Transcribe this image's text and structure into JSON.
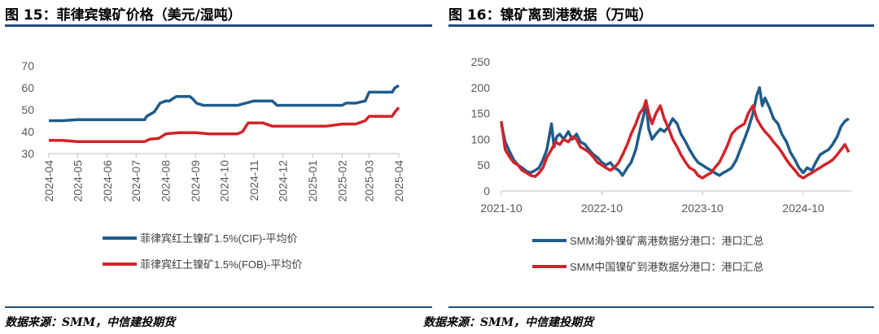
{
  "left_panel": {
    "title": "图 15：菲律宾镍矿价格（美元/湿吨）",
    "source": "数据来源：SMM，中信建投期货"
  },
  "right_panel": {
    "title": "图 16：镍矿离到港数据（万吨）",
    "source": "数据来源：SMM，中信建投期货"
  },
  "chart_data": [
    {
      "type": "line",
      "title": "图 15：菲律宾镍矿价格（美元/湿吨）",
      "xlabel": "",
      "ylabel": "",
      "ylim": [
        30,
        70
      ],
      "yticks": [
        30,
        40,
        50,
        60,
        70
      ],
      "x_ticks": [
        "2024-04",
        "2024-05",
        "2024-06",
        "2024-07",
        "2024-08",
        "2024-09",
        "2024-10",
        "2024-11",
        "2024-12",
        "2025-01",
        "2025-02",
        "2025-03",
        "2025-04"
      ],
      "grid": false,
      "legend_position": "bottom",
      "series": [
        {
          "name": "菲律宾红土镍矿1.5%(CIF)-平均价",
          "color": "#1f5c8b",
          "points": [
            [
              "2024-04-01",
              45
            ],
            [
              "2024-04-15",
              45
            ],
            [
              "2024-05-01",
              45.5
            ],
            [
              "2024-05-15",
              45.5
            ],
            [
              "2024-06-01",
              45.5
            ],
            [
              "2024-06-15",
              45.5
            ],
            [
              "2024-07-01",
              45.5
            ],
            [
              "2024-07-10",
              45.5
            ],
            [
              "2024-07-12",
              47
            ],
            [
              "2024-07-20",
              49
            ],
            [
              "2024-07-26",
              53
            ],
            [
              "2024-08-01",
              54
            ],
            [
              "2024-08-05",
              54
            ],
            [
              "2024-08-08",
              55
            ],
            [
              "2024-08-12",
              56
            ],
            [
              "2024-08-26",
              56
            ],
            [
              "2024-08-29",
              55
            ],
            [
              "2024-09-02",
              53
            ],
            [
              "2024-09-09",
              52
            ],
            [
              "2024-10-01",
              52
            ],
            [
              "2024-10-15",
              52
            ],
            [
              "2024-11-01",
              54
            ],
            [
              "2024-11-20",
              54
            ],
            [
              "2024-11-25",
              52
            ],
            [
              "2024-12-01",
              52
            ],
            [
              "2024-12-15",
              52
            ],
            [
              "2025-01-01",
              52
            ],
            [
              "2025-01-20",
              52
            ],
            [
              "2025-02-01",
              52
            ],
            [
              "2025-02-05",
              53
            ],
            [
              "2025-02-15",
              53
            ],
            [
              "2025-02-25",
              54
            ],
            [
              "2025-03-01",
              58
            ],
            [
              "2025-03-15",
              58
            ],
            [
              "2025-03-20",
              58
            ],
            [
              "2025-03-25",
              58
            ],
            [
              "2025-03-28",
              60
            ],
            [
              "2025-04-01",
              61
            ]
          ]
        },
        {
          "name": "菲律宾红土镍矿1.5%(FOB)-平均价",
          "color": "#d2232a",
          "points": [
            [
              "2024-04-01",
              36
            ],
            [
              "2024-04-15",
              36
            ],
            [
              "2024-05-01",
              35.5
            ],
            [
              "2024-05-15",
              35.5
            ],
            [
              "2024-06-01",
              35.5
            ],
            [
              "2024-06-15",
              35.5
            ],
            [
              "2024-07-01",
              35.5
            ],
            [
              "2024-07-10",
              35.5
            ],
            [
              "2024-07-15",
              36.5
            ],
            [
              "2024-07-25",
              37
            ],
            [
              "2024-08-01",
              39
            ],
            [
              "2024-08-15",
              39.5
            ],
            [
              "2024-09-01",
              39.5
            ],
            [
              "2024-09-15",
              39
            ],
            [
              "2024-10-01",
              39
            ],
            [
              "2024-10-15",
              39
            ],
            [
              "2024-10-20",
              40
            ],
            [
              "2024-10-26",
              44
            ],
            [
              "2024-11-10",
              44
            ],
            [
              "2024-11-20",
              42.5
            ],
            [
              "2024-12-01",
              42.5
            ],
            [
              "2025-01-01",
              42.5
            ],
            [
              "2025-01-15",
              42.5
            ],
            [
              "2025-02-01",
              43.5
            ],
            [
              "2025-02-15",
              43.5
            ],
            [
              "2025-02-25",
              45
            ],
            [
              "2025-03-01",
              47
            ],
            [
              "2025-03-15",
              47
            ],
            [
              "2025-03-25",
              47
            ],
            [
              "2025-03-28",
              49
            ],
            [
              "2025-04-01",
              51
            ]
          ]
        }
      ]
    },
    {
      "type": "line",
      "title": "图 16：镍矿离到港数据（万吨）",
      "xlabel": "",
      "ylabel": "",
      "ylim": [
        0,
        250
      ],
      "yticks": [
        0,
        50,
        100,
        150,
        200,
        250
      ],
      "x_ticks": [
        "2021-10",
        "2022-10",
        "2023-10",
        "2024-10"
      ],
      "grid": false,
      "legend_position": "bottom",
      "series": [
        {
          "name": "SMM海外镍矿离港数据分港口：港口汇总",
          "color": "#1f5c8b",
          "points": [
            [
              "2021-10-01",
              130
            ],
            [
              "2021-10-15",
              95
            ],
            [
              "2021-11-01",
              75
            ],
            [
              "2021-11-15",
              60
            ],
            [
              "2021-12-01",
              50
            ],
            [
              "2021-12-15",
              45
            ],
            [
              "2022-01-01",
              38
            ],
            [
              "2022-01-15",
              35
            ],
            [
              "2022-02-01",
              40
            ],
            [
              "2022-02-15",
              45
            ],
            [
              "2022-03-01",
              60
            ],
            [
              "2022-03-15",
              80
            ],
            [
              "2022-04-01",
              130
            ],
            [
              "2022-04-10",
              85
            ],
            [
              "2022-04-20",
              105
            ],
            [
              "2022-05-01",
              110
            ],
            [
              "2022-05-15",
              100
            ],
            [
              "2022-06-01",
              115
            ],
            [
              "2022-06-15",
              100
            ],
            [
              "2022-07-01",
              110
            ],
            [
              "2022-07-15",
              95
            ],
            [
              "2022-08-01",
              90
            ],
            [
              "2022-08-15",
              80
            ],
            [
              "2022-09-01",
              70
            ],
            [
              "2022-09-15",
              65
            ],
            [
              "2022-10-01",
              55
            ],
            [
              "2022-10-15",
              50
            ],
            [
              "2022-11-01",
              55
            ],
            [
              "2022-11-15",
              45
            ],
            [
              "2022-12-01",
              40
            ],
            [
              "2022-12-15",
              30
            ],
            [
              "2023-01-01",
              45
            ],
            [
              "2023-01-15",
              55
            ],
            [
              "2023-02-01",
              80
            ],
            [
              "2023-02-15",
              115
            ],
            [
              "2023-03-01",
              145
            ],
            [
              "2023-03-10",
              170
            ],
            [
              "2023-03-20",
              120
            ],
            [
              "2023-04-01",
              100
            ],
            [
              "2023-04-15",
              110
            ],
            [
              "2023-05-01",
              120
            ],
            [
              "2023-05-15",
              115
            ],
            [
              "2023-06-01",
              125
            ],
            [
              "2023-06-15",
              140
            ],
            [
              "2023-07-01",
              130
            ],
            [
              "2023-07-15",
              110
            ],
            [
              "2023-08-01",
              95
            ],
            [
              "2023-08-15",
              80
            ],
            [
              "2023-09-01",
              65
            ],
            [
              "2023-09-15",
              55
            ],
            [
              "2023-10-01",
              50
            ],
            [
              "2023-10-15",
              45
            ],
            [
              "2023-11-01",
              40
            ],
            [
              "2023-11-15",
              35
            ],
            [
              "2023-12-01",
              30
            ],
            [
              "2023-12-15",
              35
            ],
            [
              "2024-01-01",
              40
            ],
            [
              "2024-01-15",
              45
            ],
            [
              "2024-02-01",
              60
            ],
            [
              "2024-02-15",
              80
            ],
            [
              "2024-03-01",
              100
            ],
            [
              "2024-03-15",
              120
            ],
            [
              "2024-04-01",
              150
            ],
            [
              "2024-04-15",
              185
            ],
            [
              "2024-04-25",
              200
            ],
            [
              "2024-05-05",
              165
            ],
            [
              "2024-05-15",
              180
            ],
            [
              "2024-06-01",
              160
            ],
            [
              "2024-06-15",
              140
            ],
            [
              "2024-07-01",
              130
            ],
            [
              "2024-07-15",
              110
            ],
            [
              "2024-08-01",
              95
            ],
            [
              "2024-08-15",
              75
            ],
            [
              "2024-09-01",
              60
            ],
            [
              "2024-09-15",
              45
            ],
            [
              "2024-10-01",
              35
            ],
            [
              "2024-10-15",
              45
            ],
            [
              "2024-11-01",
              40
            ],
            [
              "2024-11-15",
              55
            ],
            [
              "2024-12-01",
              70
            ],
            [
              "2024-12-15",
              75
            ],
            [
              "2025-01-01",
              80
            ],
            [
              "2025-01-15",
              90
            ],
            [
              "2025-02-01",
              105
            ],
            [
              "2025-02-15",
              125
            ],
            [
              "2025-03-01",
              135
            ],
            [
              "2025-03-15",
              140
            ]
          ]
        },
        {
          "name": "SMM中国镍矿到港数据分港口：港口汇总",
          "color": "#d2232a",
          "points": [
            [
              "2021-10-01",
              135
            ],
            [
              "2021-10-15",
              80
            ],
            [
              "2021-11-01",
              65
            ],
            [
              "2021-11-15",
              55
            ],
            [
              "2021-12-01",
              50
            ],
            [
              "2021-12-15",
              40
            ],
            [
              "2022-01-01",
              35
            ],
            [
              "2022-01-15",
              30
            ],
            [
              "2022-02-01",
              28
            ],
            [
              "2022-02-15",
              35
            ],
            [
              "2022-03-01",
              45
            ],
            [
              "2022-03-15",
              65
            ],
            [
              "2022-04-01",
              80
            ],
            [
              "2022-04-15",
              95
            ],
            [
              "2022-05-01",
              90
            ],
            [
              "2022-05-15",
              100
            ],
            [
              "2022-06-01",
              95
            ],
            [
              "2022-06-15",
              105
            ],
            [
              "2022-07-01",
              100
            ],
            [
              "2022-07-15",
              85
            ],
            [
              "2022-08-01",
              80
            ],
            [
              "2022-08-15",
              75
            ],
            [
              "2022-09-01",
              65
            ],
            [
              "2022-09-15",
              55
            ],
            [
              "2022-10-01",
              50
            ],
            [
              "2022-10-15",
              45
            ],
            [
              "2022-11-01",
              40
            ],
            [
              "2022-11-15",
              45
            ],
            [
              "2022-12-01",
              55
            ],
            [
              "2022-12-15",
              70
            ],
            [
              "2023-01-01",
              90
            ],
            [
              "2023-01-15",
              110
            ],
            [
              "2023-02-01",
              130
            ],
            [
              "2023-02-15",
              150
            ],
            [
              "2023-03-01",
              160
            ],
            [
              "2023-03-10",
              175
            ],
            [
              "2023-03-20",
              150
            ],
            [
              "2023-04-01",
              130
            ],
            [
              "2023-04-15",
              150
            ],
            [
              "2023-05-01",
              165
            ],
            [
              "2023-05-15",
              140
            ],
            [
              "2023-06-01",
              120
            ],
            [
              "2023-06-15",
              100
            ],
            [
              "2023-07-01",
              85
            ],
            [
              "2023-07-15",
              70
            ],
            [
              "2023-08-01",
              55
            ],
            [
              "2023-08-15",
              45
            ],
            [
              "2023-09-01",
              40
            ],
            [
              "2023-09-15",
              30
            ],
            [
              "2023-10-01",
              25
            ],
            [
              "2023-10-15",
              30
            ],
            [
              "2023-11-01",
              35
            ],
            [
              "2023-11-15",
              45
            ],
            [
              "2023-12-01",
              55
            ],
            [
              "2023-12-15",
              70
            ],
            [
              "2024-01-01",
              90
            ],
            [
              "2024-01-15",
              110
            ],
            [
              "2024-02-01",
              120
            ],
            [
              "2024-02-15",
              125
            ],
            [
              "2024-03-01",
              130
            ],
            [
              "2024-03-15",
              150
            ],
            [
              "2024-04-01",
              165
            ],
            [
              "2024-04-15",
              140
            ],
            [
              "2024-05-01",
              125
            ],
            [
              "2024-05-15",
              115
            ],
            [
              "2024-06-01",
              105
            ],
            [
              "2024-06-15",
              95
            ],
            [
              "2024-07-01",
              85
            ],
            [
              "2024-07-15",
              75
            ],
            [
              "2024-08-01",
              60
            ],
            [
              "2024-08-15",
              50
            ],
            [
              "2024-09-01",
              40
            ],
            [
              "2024-09-15",
              30
            ],
            [
              "2024-10-01",
              25
            ],
            [
              "2024-10-15",
              30
            ],
            [
              "2024-11-01",
              35
            ],
            [
              "2024-11-15",
              40
            ],
            [
              "2024-12-01",
              45
            ],
            [
              "2024-12-15",
              50
            ],
            [
              "2025-01-01",
              55
            ],
            [
              "2025-01-15",
              60
            ],
            [
              "2025-02-01",
              70
            ],
            [
              "2025-02-15",
              80
            ],
            [
              "2025-03-01",
              90
            ],
            [
              "2025-03-15",
              75
            ]
          ]
        }
      ]
    }
  ]
}
